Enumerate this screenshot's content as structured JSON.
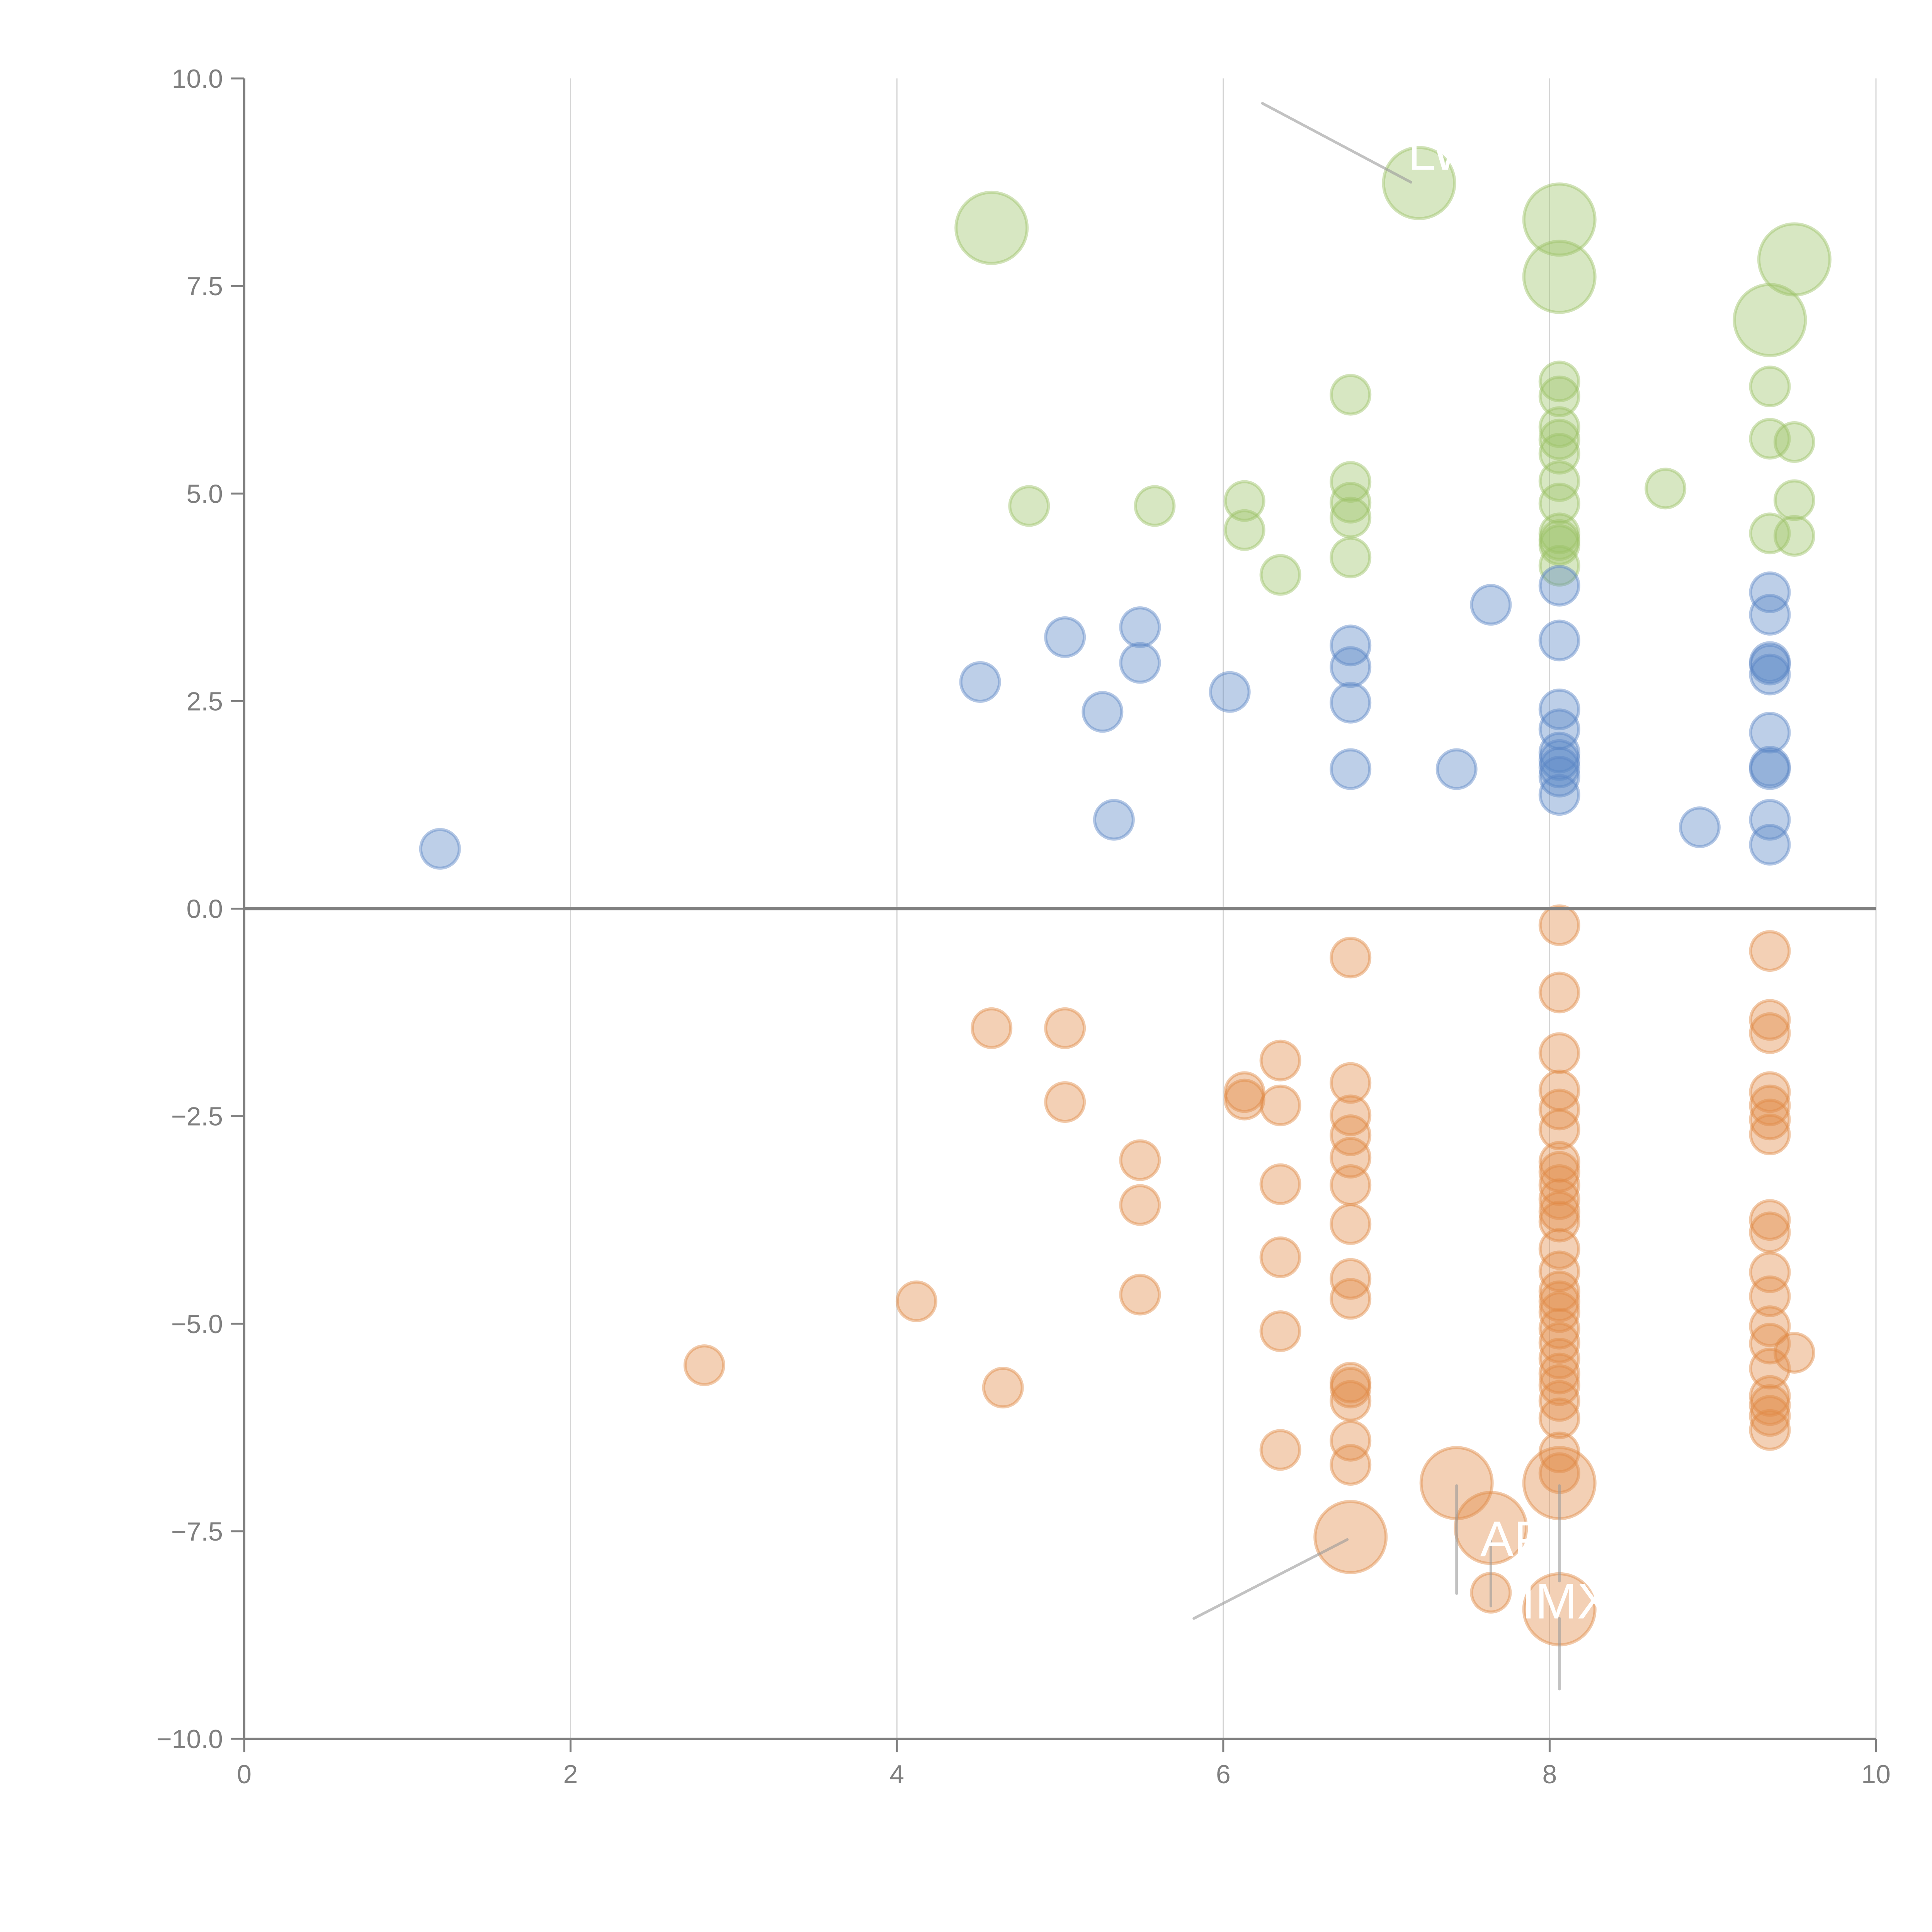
{
  "chart_data": {
    "type": "scatter",
    "title": "",
    "xlabel": "",
    "ylabel": "",
    "xlim": [
      0,
      10
    ],
    "ylim": [
      -10,
      10
    ],
    "x_ticks": [
      "0",
      "2",
      "4",
      "6",
      "8",
      "10"
    ],
    "x_tick_values": [
      0,
      2,
      4,
      6,
      8,
      10
    ],
    "y_ticks": [
      "10.0",
      "7.5",
      "5.0",
      "2.5",
      "0.0",
      "−2.5",
      "−5.0",
      "−7.5",
      "−10.0"
    ],
    "y_tick_values": [
      10,
      7.5,
      5,
      2.5,
      0,
      -2.5,
      -5,
      -7.5,
      -10
    ],
    "grid": "vertical",
    "zero_line": true,
    "legend": "none",
    "size_levels": {
      "small": 1,
      "large": 2
    },
    "series": [
      {
        "name": "green",
        "color": "#9cc266",
        "points": [
          {
            "x": 4.81,
            "y": 4.85,
            "s": 1
          },
          {
            "x": 5.58,
            "y": 4.85,
            "s": 1
          },
          {
            "x": 6.13,
            "y": 4.91,
            "s": 1
          },
          {
            "x": 6.13,
            "y": 4.56,
            "s": 1
          },
          {
            "x": 6.35,
            "y": 4.02,
            "s": 1
          },
          {
            "x": 6.78,
            "y": 6.19,
            "s": 1
          },
          {
            "x": 6.78,
            "y": 5.14,
            "s": 1
          },
          {
            "x": 6.78,
            "y": 4.89,
            "s": 1
          },
          {
            "x": 6.78,
            "y": 4.71,
            "s": 1
          },
          {
            "x": 6.78,
            "y": 4.23,
            "s": 1
          },
          {
            "x": 8.06,
            "y": 6.35,
            "s": 1
          },
          {
            "x": 8.06,
            "y": 6.17,
            "s": 1
          },
          {
            "x": 8.06,
            "y": 5.8,
            "s": 1
          },
          {
            "x": 8.06,
            "y": 5.65,
            "s": 1
          },
          {
            "x": 8.06,
            "y": 5.48,
            "s": 1
          },
          {
            "x": 8.06,
            "y": 5.15,
            "s": 1
          },
          {
            "x": 8.06,
            "y": 4.88,
            "s": 1
          },
          {
            "x": 8.06,
            "y": 4.52,
            "s": 1
          },
          {
            "x": 8.06,
            "y": 4.44,
            "s": 1
          },
          {
            "x": 8.06,
            "y": 4.38,
            "s": 1
          },
          {
            "x": 8.06,
            "y": 4.13,
            "s": 1
          },
          {
            "x": 8.71,
            "y": 5.06,
            "s": 1
          },
          {
            "x": 9.35,
            "y": 6.29,
            "s": 1
          },
          {
            "x": 9.35,
            "y": 5.66,
            "s": 1
          },
          {
            "x": 9.35,
            "y": 4.52,
            "s": 1
          },
          {
            "x": 9.5,
            "y": 5.62,
            "s": 1
          },
          {
            "x": 9.5,
            "y": 4.92,
            "s": 1
          },
          {
            "x": 9.5,
            "y": 4.49,
            "s": 1
          },
          {
            "x": 4.58,
            "y": 8.2,
            "s": 2
          },
          {
            "x": 7.2,
            "y": 8.74,
            "s": 2
          },
          {
            "x": 8.06,
            "y": 8.3,
            "s": 2
          },
          {
            "x": 8.06,
            "y": 7.61,
            "s": 2
          },
          {
            "x": 9.5,
            "y": 7.82,
            "s": 2
          },
          {
            "x": 9.35,
            "y": 7.09,
            "s": 2
          }
        ]
      },
      {
        "name": "blue",
        "color": "#5a86c6",
        "points": [
          {
            "x": 1.2,
            "y": 0.72,
            "s": 1
          },
          {
            "x": 4.51,
            "y": 2.73,
            "s": 1
          },
          {
            "x": 5.03,
            "y": 3.27,
            "s": 1
          },
          {
            "x": 5.49,
            "y": 3.39,
            "s": 1
          },
          {
            "x": 5.49,
            "y": 2.96,
            "s": 1
          },
          {
            "x": 5.26,
            "y": 2.37,
            "s": 1
          },
          {
            "x": 5.33,
            "y": 1.07,
            "s": 1
          },
          {
            "x": 6.04,
            "y": 2.61,
            "s": 1
          },
          {
            "x": 6.78,
            "y": 3.17,
            "s": 1
          },
          {
            "x": 6.78,
            "y": 2.91,
            "s": 1
          },
          {
            "x": 6.78,
            "y": 2.48,
            "s": 1
          },
          {
            "x": 6.78,
            "y": 1.68,
            "s": 1
          },
          {
            "x": 7.64,
            "y": 3.66,
            "s": 1
          },
          {
            "x": 7.43,
            "y": 1.68,
            "s": 1
          },
          {
            "x": 8.06,
            "y": 3.89,
            "s": 1
          },
          {
            "x": 8.06,
            "y": 3.23,
            "s": 1
          },
          {
            "x": 8.06,
            "y": 2.4,
            "s": 1
          },
          {
            "x": 8.06,
            "y": 2.16,
            "s": 1
          },
          {
            "x": 8.06,
            "y": 1.88,
            "s": 1
          },
          {
            "x": 8.06,
            "y": 1.79,
            "s": 1
          },
          {
            "x": 8.06,
            "y": 1.7,
            "s": 1
          },
          {
            "x": 8.06,
            "y": 1.59,
            "s": 1
          },
          {
            "x": 8.06,
            "y": 1.37,
            "s": 1
          },
          {
            "x": 8.92,
            "y": 0.98,
            "s": 1
          },
          {
            "x": 9.35,
            "y": 3.81,
            "s": 1
          },
          {
            "x": 9.35,
            "y": 3.54,
            "s": 1
          },
          {
            "x": 9.35,
            "y": 2.97,
            "s": 1
          },
          {
            "x": 9.35,
            "y": 2.94,
            "s": 1
          },
          {
            "x": 9.35,
            "y": 2.82,
            "s": 1
          },
          {
            "x": 9.35,
            "y": 2.12,
            "s": 1
          },
          {
            "x": 9.35,
            "y": 1.71,
            "s": 1
          },
          {
            "x": 9.35,
            "y": 1.68,
            "s": 1
          },
          {
            "x": 9.35,
            "y": 1.07,
            "s": 1
          },
          {
            "x": 9.35,
            "y": 0.77,
            "s": 1
          }
        ]
      },
      {
        "name": "orange",
        "color": "#e08a45",
        "points": [
          {
            "x": 2.82,
            "y": -5.5,
            "s": 1
          },
          {
            "x": 4.12,
            "y": -4.73,
            "s": 1
          },
          {
            "x": 4.58,
            "y": -1.44,
            "s": 1
          },
          {
            "x": 4.65,
            "y": -5.77,
            "s": 1
          },
          {
            "x": 5.03,
            "y": -1.44,
            "s": 1
          },
          {
            "x": 5.03,
            "y": -2.33,
            "s": 1
          },
          {
            "x": 5.49,
            "y": -3.03,
            "s": 1
          },
          {
            "x": 5.49,
            "y": -3.57,
            "s": 1
          },
          {
            "x": 5.49,
            "y": -4.65,
            "s": 1
          },
          {
            "x": 6.13,
            "y": -2.21,
            "s": 1
          },
          {
            "x": 6.13,
            "y": -2.3,
            "s": 1
          },
          {
            "x": 6.35,
            "y": -1.83,
            "s": 1
          },
          {
            "x": 6.35,
            "y": -2.37,
            "s": 1
          },
          {
            "x": 6.35,
            "y": -3.32,
            "s": 1
          },
          {
            "x": 6.35,
            "y": -4.2,
            "s": 1
          },
          {
            "x": 6.35,
            "y": -5.09,
            "s": 1
          },
          {
            "x": 6.35,
            "y": -6.52,
            "s": 1
          },
          {
            "x": 6.78,
            "y": -0.59,
            "s": 1
          },
          {
            "x": 6.78,
            "y": -2.1,
            "s": 1
          },
          {
            "x": 6.78,
            "y": -2.49,
            "s": 1
          },
          {
            "x": 6.78,
            "y": -2.73,
            "s": 1
          },
          {
            "x": 6.78,
            "y": -3.0,
            "s": 1
          },
          {
            "x": 6.78,
            "y": -3.33,
            "s": 1
          },
          {
            "x": 6.78,
            "y": -3.8,
            "s": 1
          },
          {
            "x": 6.78,
            "y": -4.46,
            "s": 1
          },
          {
            "x": 6.78,
            "y": -4.7,
            "s": 1
          },
          {
            "x": 6.78,
            "y": -5.71,
            "s": 1
          },
          {
            "x": 6.78,
            "y": -5.77,
            "s": 1
          },
          {
            "x": 6.78,
            "y": -5.93,
            "s": 1
          },
          {
            "x": 6.78,
            "y": -6.41,
            "s": 1
          },
          {
            "x": 6.78,
            "y": -6.7,
            "s": 1
          },
          {
            "x": 8.06,
            "y": -0.2,
            "s": 1
          },
          {
            "x": 8.06,
            "y": -1.01,
            "s": 1
          },
          {
            "x": 8.06,
            "y": -1.74,
            "s": 1
          },
          {
            "x": 8.06,
            "y": -2.19,
            "s": 1
          },
          {
            "x": 8.06,
            "y": -2.42,
            "s": 1
          },
          {
            "x": 8.06,
            "y": -2.66,
            "s": 1
          },
          {
            "x": 8.06,
            "y": -3.05,
            "s": 1
          },
          {
            "x": 8.06,
            "y": -3.17,
            "s": 1
          },
          {
            "x": 8.06,
            "y": -3.33,
            "s": 1
          },
          {
            "x": 8.06,
            "y": -3.5,
            "s": 1
          },
          {
            "x": 8.06,
            "y": -3.65,
            "s": 1
          },
          {
            "x": 8.06,
            "y": -3.77,
            "s": 1
          },
          {
            "x": 8.06,
            "y": -4.1,
            "s": 1
          },
          {
            "x": 8.06,
            "y": -4.37,
            "s": 1
          },
          {
            "x": 8.06,
            "y": -4.61,
            "s": 1
          },
          {
            "x": 8.06,
            "y": -4.73,
            "s": 1
          },
          {
            "x": 8.06,
            "y": -4.86,
            "s": 1
          },
          {
            "x": 8.06,
            "y": -5.06,
            "s": 1
          },
          {
            "x": 8.06,
            "y": -5.23,
            "s": 1
          },
          {
            "x": 8.06,
            "y": -5.42,
            "s": 1
          },
          {
            "x": 8.06,
            "y": -5.6,
            "s": 1
          },
          {
            "x": 8.06,
            "y": -5.74,
            "s": 1
          },
          {
            "x": 8.06,
            "y": -5.93,
            "s": 1
          },
          {
            "x": 8.06,
            "y": -6.14,
            "s": 1
          },
          {
            "x": 8.06,
            "y": -6.55,
            "s": 1
          },
          {
            "x": 8.06,
            "y": -6.8,
            "s": 1
          },
          {
            "x": 9.35,
            "y": -0.51,
            "s": 1
          },
          {
            "x": 9.35,
            "y": -1.34,
            "s": 1
          },
          {
            "x": 9.35,
            "y": -1.5,
            "s": 1
          },
          {
            "x": 9.35,
            "y": -2.21,
            "s": 1
          },
          {
            "x": 9.35,
            "y": -2.37,
            "s": 1
          },
          {
            "x": 9.35,
            "y": -2.54,
            "s": 1
          },
          {
            "x": 9.35,
            "y": -2.72,
            "s": 1
          },
          {
            "x": 9.35,
            "y": -3.75,
            "s": 1
          },
          {
            "x": 9.35,
            "y": -3.9,
            "s": 1
          },
          {
            "x": 9.35,
            "y": -4.38,
            "s": 1
          },
          {
            "x": 9.35,
            "y": -4.67,
            "s": 1
          },
          {
            "x": 9.35,
            "y": -5.03,
            "s": 1
          },
          {
            "x": 9.35,
            "y": -5.24,
            "s": 1
          },
          {
            "x": 9.35,
            "y": -5.54,
            "s": 1
          },
          {
            "x": 9.35,
            "y": -5.87,
            "s": 1
          },
          {
            "x": 9.35,
            "y": -5.98,
            "s": 1
          },
          {
            "x": 9.35,
            "y": -6.11,
            "s": 1
          },
          {
            "x": 9.35,
            "y": -6.28,
            "s": 1
          },
          {
            "x": 9.5,
            "y": -5.35,
            "s": 1
          },
          {
            "x": 7.64,
            "y": -8.24,
            "s": 1
          },
          {
            "x": 6.78,
            "y": -7.57,
            "s": 2
          },
          {
            "x": 7.43,
            "y": -6.92,
            "s": 2
          },
          {
            "x": 7.64,
            "y": -7.46,
            "s": 2
          },
          {
            "x": 8.06,
            "y": -6.92,
            "s": 2
          },
          {
            "x": 8.06,
            "y": -8.44,
            "s": 2
          }
        ]
      }
    ],
    "annotations": [
      {
        "text": "LW",
        "x": 7.2,
        "y": 8.74,
        "label_x": 7.35,
        "label_y": 8.9,
        "leader_from": [
          6.24,
          9.7
        ],
        "leader_to": [
          7.15,
          8.75
        ]
      },
      {
        "text": "AP",
        "x": 7.64,
        "y": -7.46,
        "label_x": 7.78,
        "label_y": -7.8,
        "leader_from": [
          7.43,
          -6.95
        ],
        "leader_to": [
          7.43,
          -8.25
        ]
      },
      {
        "text": "IMX",
        "x": 8.06,
        "y": -8.44,
        "label_x": 8.1,
        "label_y": -8.55,
        "leader_from": [
          8.06,
          -8.55
        ],
        "leader_to": [
          8.06,
          -9.4
        ]
      }
    ],
    "leader_lines": [
      {
        "from": [
          6.24,
          9.7
        ],
        "to": [
          7.15,
          8.75
        ]
      },
      {
        "from": [
          5.82,
          -8.55
        ],
        "to": [
          6.76,
          -7.6
        ]
      },
      {
        "from": [
          7.43,
          -6.95
        ],
        "to": [
          7.43,
          -8.25
        ]
      },
      {
        "from": [
          7.64,
          -7.6
        ],
        "to": [
          7.64,
          -8.4
        ]
      },
      {
        "from": [
          8.06,
          -6.95
        ],
        "to": [
          8.06,
          -8.1
        ]
      },
      {
        "from": [
          8.06,
          -8.55
        ],
        "to": [
          8.06,
          -9.4
        ]
      }
    ]
  }
}
